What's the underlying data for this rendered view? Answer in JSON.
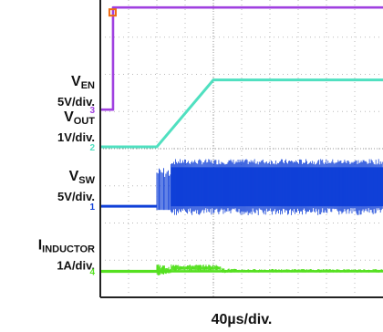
{
  "chart_data": {
    "type": "line",
    "title": "",
    "xlabel": "40µs/div.",
    "xlim": [
      0,
      400
    ],
    "ylim_divisions": [
      0,
      8
    ],
    "grid": true,
    "series": [
      {
        "name": "V",
        "subscript": "EN",
        "scale": "5V/div.",
        "marker": "3",
        "color": "#a040e0",
        "x": [
          0,
          18,
          18,
          400
        ],
        "y": [
          5.05,
          5.05,
          7.8,
          7.8
        ]
      },
      {
        "name": "V",
        "subscript": "OUT",
        "scale": "1V/div.",
        "marker": "2",
        "color": "#50e0c0",
        "x": [
          0,
          80,
          160,
          400
        ],
        "y": [
          4.05,
          4.05,
          5.85,
          5.85
        ]
      },
      {
        "name": "V",
        "subscript": "SW",
        "scale": "5V/div.",
        "marker": "1",
        "color": "#1040d8",
        "baseline": 2.45,
        "burst_start": 80,
        "burst_dense": 100,
        "high_level": 3.5,
        "x": [
          0,
          80,
          100,
          400
        ],
        "y": [
          2.45,
          2.45,
          3.5,
          3.5
        ]
      },
      {
        "name": "I",
        "subscript": "INDUCTOR",
        "scale": "1A/div.",
        "marker": "4",
        "color": "#55e020",
        "baseline": 0.7,
        "x": [
          0,
          80,
          100,
          160,
          400
        ],
        "y": [
          0.7,
          0.7,
          0.72,
          0.8,
          0.7
        ]
      }
    ]
  }
}
